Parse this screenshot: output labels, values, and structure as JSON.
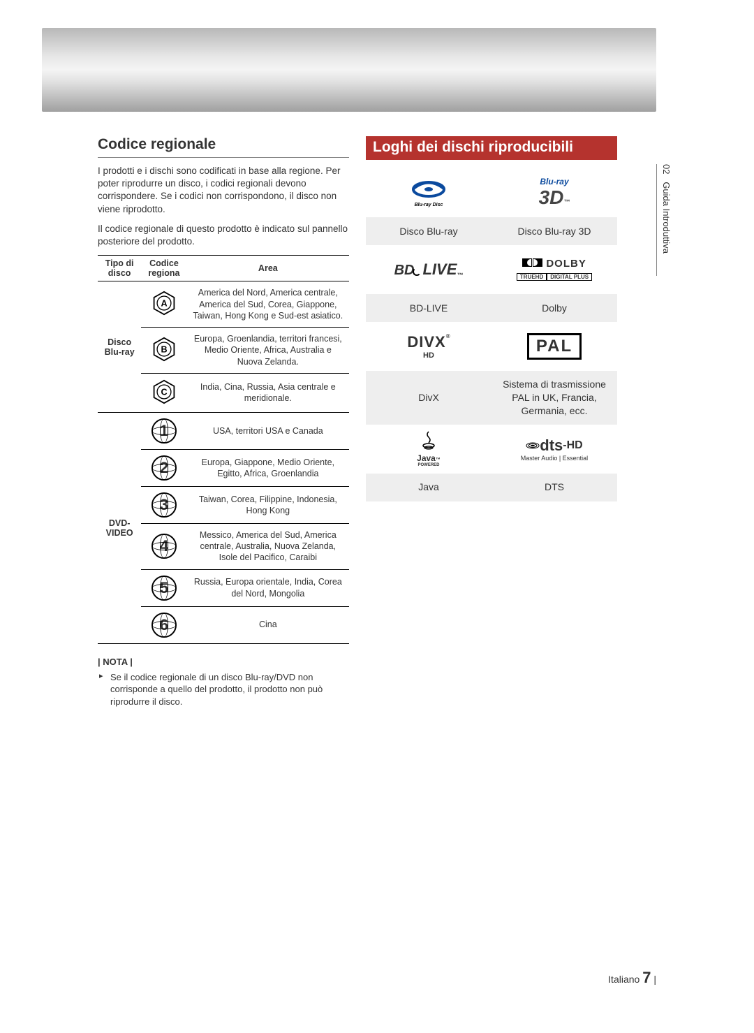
{
  "side_tab": {
    "chapter": "02",
    "label": "Guida Introduttiva"
  },
  "left": {
    "title": "Codice regionale",
    "intro_p1": "I prodotti e i dischi sono codificati in base alla regione. Per poter riprodurre un disco, i codici regionali devono corrispondere. Se i codici non corrispondono, il disco non viene riprodotto.",
    "intro_p2": "Il codice regionale di questo prodotto è indicato sul pannello posteriore del prodotto.",
    "table": {
      "headers": {
        "disc_type": "Tipo di disco",
        "region_code": "Codice regiona",
        "area": "Area"
      },
      "bluray_label": "Disco Blu-ray",
      "dvd_label": "DVD-VIDEO",
      "bluray_rows": [
        {
          "code": "A",
          "area": "America del Nord, America centrale, America del Sud, Corea, Giappone, Taiwan, Hong Kong e Sud-est asiatico."
        },
        {
          "code": "B",
          "area": "Europa, Groenlandia, territori francesi, Medio Oriente, Africa, Australia e Nuova Zelanda."
        },
        {
          "code": "C",
          "area": "India, Cina, Russia, Asia centrale e meridionale."
        }
      ],
      "dvd_rows": [
        {
          "code": "1",
          "area": "USA, territori USA e Canada"
        },
        {
          "code": "2",
          "area": "Europa, Giappone, Medio Oriente, Egitto, Africa, Groenlandia"
        },
        {
          "code": "3",
          "area": "Taiwan, Corea, Filippine, Indonesia, Hong Kong"
        },
        {
          "code": "4",
          "area": "Messico, America del Sud, America centrale, Australia, Nuova Zelanda, Isole del Pacifico, Caraibi"
        },
        {
          "code": "5",
          "area": "Russia, Europa orientale, India, Corea del Nord, Mongolia"
        },
        {
          "code": "6",
          "area": "Cina"
        }
      ]
    },
    "note_label": "| NOTA |",
    "note_text": "Se il codice regionale di un disco Blu-ray/DVD non corrisponde a quello del prodotto, il prodotto non può riprodurre il disco."
  },
  "right": {
    "title": "Loghi dei dischi riproducibili",
    "rows": [
      {
        "left_logo": "bluray-disc",
        "left_label": "Disco Blu-ray",
        "right_logo": "bluray-3d",
        "right_label": "Disco Blu-ray 3D"
      },
      {
        "left_logo": "bd-live",
        "left_label": "BD-LIVE",
        "right_logo": "dolby",
        "right_label": "Dolby"
      },
      {
        "left_logo": "divx",
        "left_label": "DivX",
        "right_logo": "pal",
        "right_label": "Sistema di trasmissione PAL in UK, Francia, Germania, ecc."
      },
      {
        "left_logo": "java",
        "left_label": "Java",
        "right_logo": "dts-hd",
        "right_label": "DTS"
      }
    ],
    "logo_texts": {
      "bluray-3d-top": "Blu-ray",
      "bluray-3d-main": "3D",
      "bd-live-top": "BD",
      "bd-live-main": "LIVE",
      "dolby-top": "DOLBY",
      "dolby-mid": "TRUEHD",
      "dolby-bot": "DIGITAL PLUS",
      "divx-main": "DIVX",
      "divx-sub": "HD",
      "pal": "PAL",
      "java-main": "Java",
      "java-sub": "POWERED",
      "dts-main": "dts-HD",
      "dts-sub": "Master Audio | Essential"
    }
  },
  "footer": {
    "lang": "Italiano",
    "page": "7"
  },
  "colors": {
    "title_bar_bg": "#b5332e",
    "title_bar_text": "#ffffff",
    "grid_odd_bg": "#eeeeee",
    "grid_even_bg": "#ffffff"
  }
}
